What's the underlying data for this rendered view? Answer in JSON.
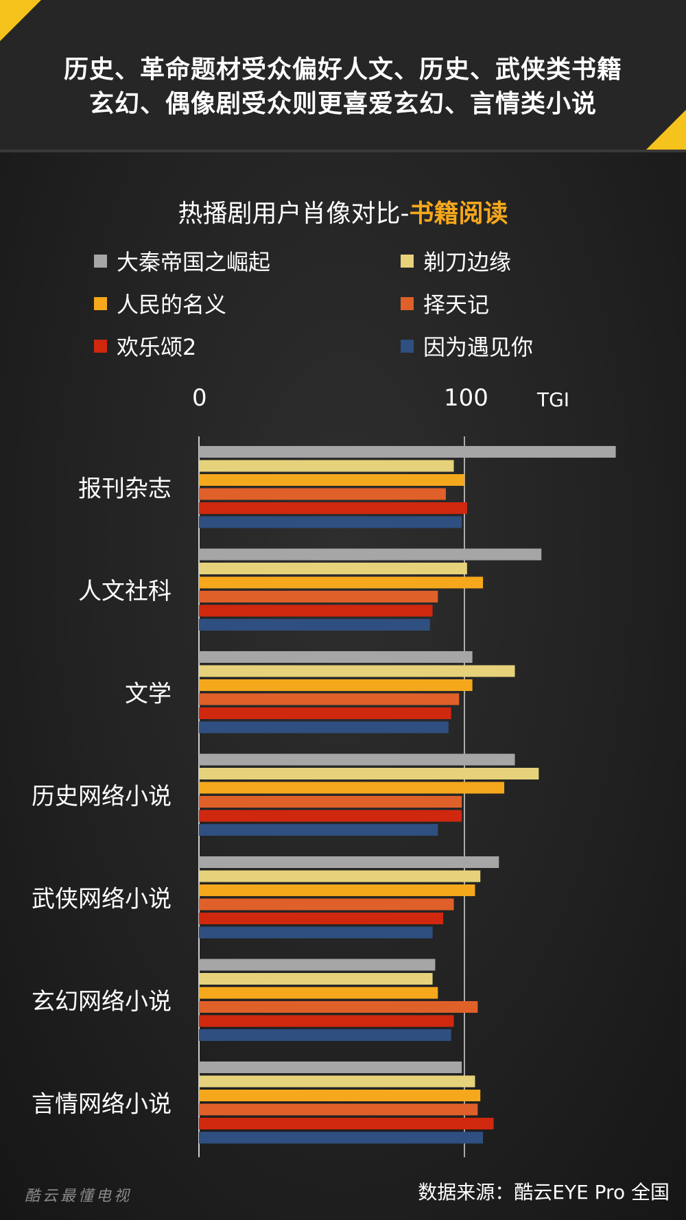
{
  "header": {
    "line1": "历史、革命题材受众偏好人文、历史、武侠类书籍",
    "line2": "玄幻、偶像剧受众则更喜爱玄幻、言情类小说"
  },
  "title": {
    "prefix": "热播剧用户肖像对比-",
    "highlight": "书籍阅读"
  },
  "colors": {
    "accent": "#f6a81c",
    "corner": "#f6c21c"
  },
  "chart_data": {
    "type": "bar",
    "orientation": "horizontal",
    "xlabel": "TGI",
    "x_ticks": [
      "0",
      "100"
    ],
    "xlim": [
      0,
      160
    ],
    "reference_line": 100,
    "categories": [
      "报刊杂志",
      "人文社科",
      "文学",
      "历史网络小说",
      "武侠网络小说",
      "玄幻网络小说",
      "言情网络小说"
    ],
    "series": [
      {
        "name": "大秦帝国之崛起",
        "color": "#a6a6a6",
        "values": [
          157,
          129,
          103,
          119,
          113,
          89,
          99
        ]
      },
      {
        "name": "剃刀边缘",
        "color": "#e6d27a",
        "values": [
          96,
          101,
          119,
          128,
          106,
          88,
          104
        ]
      },
      {
        "name": "人民的名义",
        "color": "#f6a81c",
        "values": [
          100,
          107,
          103,
          115,
          104,
          90,
          106
        ]
      },
      {
        "name": "择天记",
        "color": "#e0602a",
        "values": [
          93,
          90,
          98,
          99,
          96,
          105,
          105
        ]
      },
      {
        "name": "欢乐颂2",
        "color": "#d0280f",
        "values": [
          101,
          88,
          95,
          99,
          92,
          96,
          111
        ]
      },
      {
        "name": "因为遇见你",
        "color": "#2f4f80",
        "values": [
          99,
          87,
          94,
          90,
          88,
          95,
          107
        ]
      }
    ],
    "legend_placement": "top",
    "grid": false
  },
  "footer": {
    "watermark": "酷云最懂电视",
    "source": "数据来源：酷云EYE Pro 全国"
  }
}
